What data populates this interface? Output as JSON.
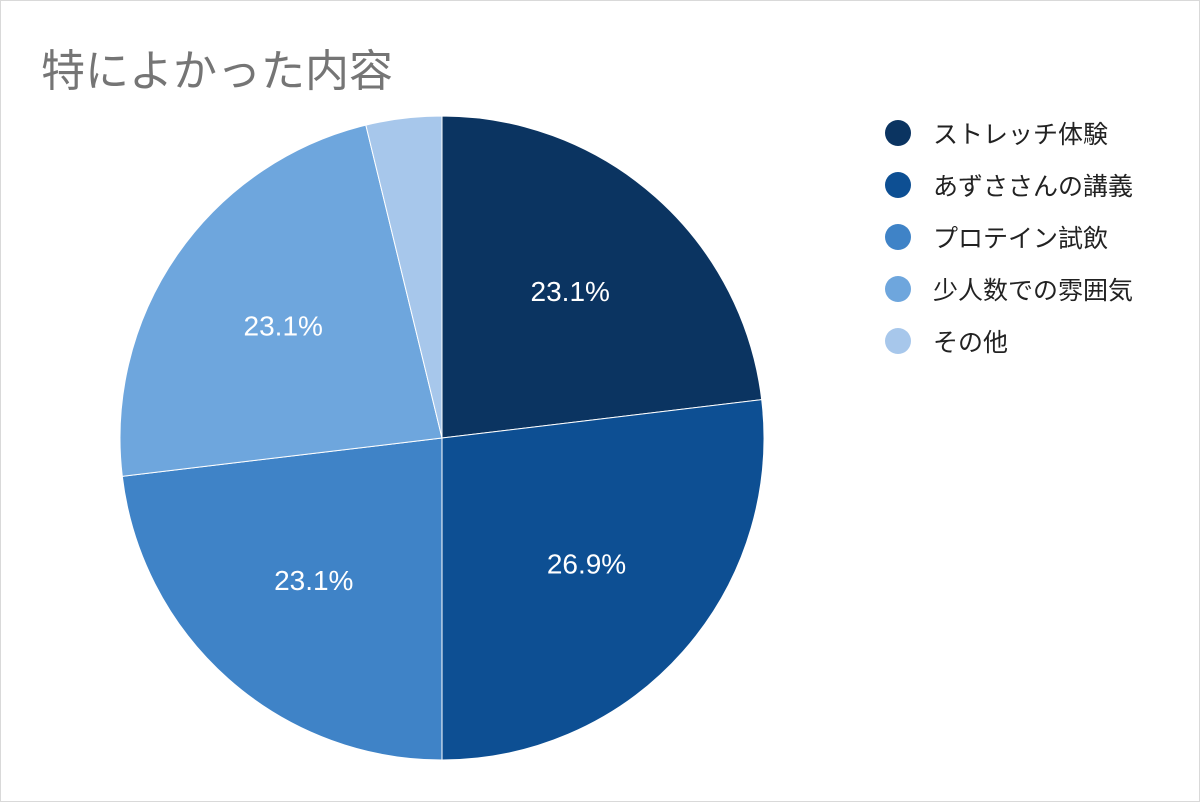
{
  "chart_data": {
    "type": "pie",
    "title": "特によかった内容",
    "start_angle_deg": 0,
    "direction": "clockwise",
    "legend_position": "right",
    "slices": [
      {
        "label": "ストレッチ体験",
        "value": 23.1,
        "value_label": "23.1%",
        "color": "#0b3461"
      },
      {
        "label": "あずささんの講義",
        "value": 26.9,
        "value_label": "26.9%",
        "color": "#0d4f93"
      },
      {
        "label": "プロテイン試飲",
        "value": 23.1,
        "value_label": "23.1%",
        "color": "#3f83c7"
      },
      {
        "label": "少人数での雰囲気",
        "value": 23.1,
        "value_label": "23.1%",
        "color": "#6ea6dd"
      },
      {
        "label": "その他",
        "value": 3.8,
        "value_label": "",
        "color": "#a7c7eb"
      }
    ]
  }
}
